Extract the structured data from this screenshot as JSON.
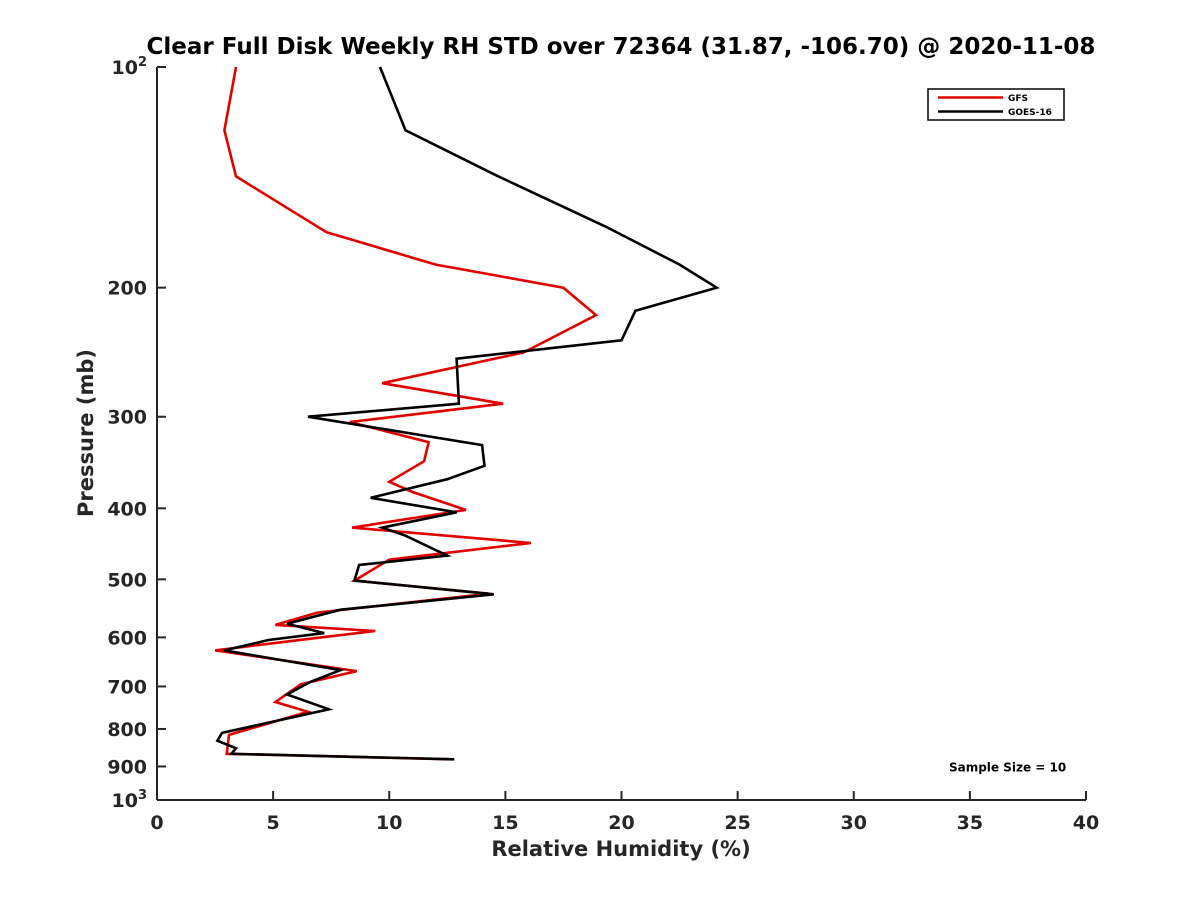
{
  "chart_data": {
    "type": "line",
    "title": "Clear Full Disk Weekly RH STD over 72364 (31.87, -106.70) @ 2020-11-08",
    "xlabel": "Relative Humidity (%)",
    "ylabel": "Pressure (mb)",
    "xlim": [
      0,
      40
    ],
    "ylim": [
      100,
      1000
    ],
    "yscale": "log",
    "y_reversed": true,
    "grid": false,
    "legend_position": "top-right",
    "x_ticks": [
      "0",
      "5",
      "10",
      "15",
      "20",
      "25",
      "30",
      "35",
      "40"
    ],
    "x_tick_values": [
      0,
      5,
      10,
      15,
      20,
      25,
      30,
      35,
      40
    ],
    "y_ticks": [
      {
        "value": 100,
        "base": "10",
        "exp": "2"
      },
      {
        "value": 200,
        "label": "200"
      },
      {
        "value": 300,
        "label": "300"
      },
      {
        "value": 400,
        "label": "400"
      },
      {
        "value": 500,
        "label": "500"
      },
      {
        "value": 600,
        "label": "600"
      },
      {
        "value": 700,
        "label": "700"
      },
      {
        "value": 800,
        "label": "800"
      },
      {
        "value": 900,
        "label": "900"
      },
      {
        "value": 1000,
        "base": "10",
        "exp": "3"
      }
    ],
    "series": [
      {
        "name": "GFS",
        "color": "#e00000",
        "points": [
          [
            3.4,
            100
          ],
          [
            2.9,
            122
          ],
          [
            3.4,
            141
          ],
          [
            7.3,
            168
          ],
          [
            12.0,
            186
          ],
          [
            17.5,
            200
          ],
          [
            18.9,
            218
          ],
          [
            15.8,
            245
          ],
          [
            9.7,
            270
          ],
          [
            14.9,
            288
          ],
          [
            8.3,
            305
          ],
          [
            11.7,
            325
          ],
          [
            11.5,
            345
          ],
          [
            10.0,
            368
          ],
          [
            11.0,
            380
          ],
          [
            13.3,
            402
          ],
          [
            8.4,
            425
          ],
          [
            16.1,
            446
          ],
          [
            10.0,
            470
          ],
          [
            8.5,
            502
          ],
          [
            14.3,
            523
          ],
          [
            6.9,
            555
          ],
          [
            5.1,
            577
          ],
          [
            9.4,
            588
          ],
          [
            6.7,
            602
          ],
          [
            2.5,
            625
          ],
          [
            8.6,
            667
          ],
          [
            6.2,
            695
          ],
          [
            5.1,
            735
          ],
          [
            6.5,
            758
          ],
          [
            3.1,
            815
          ],
          [
            3.0,
            865
          ],
          [
            12.7,
            880
          ]
        ]
      },
      {
        "name": "GOES-16",
        "color": "#000000",
        "points": [
          [
            9.6,
            100
          ],
          [
            10.7,
            122
          ],
          [
            14.7,
            141
          ],
          [
            19.3,
            165
          ],
          [
            22.5,
            186
          ],
          [
            24.1,
            200
          ],
          [
            20.6,
            215
          ],
          [
            20.0,
            236
          ],
          [
            12.9,
            250
          ],
          [
            13.0,
            288
          ],
          [
            6.5,
            300
          ],
          [
            14.0,
            328
          ],
          [
            14.1,
            350
          ],
          [
            12.5,
            365
          ],
          [
            9.2,
            387
          ],
          [
            12.9,
            405
          ],
          [
            9.7,
            425
          ],
          [
            10.7,
            436
          ],
          [
            12.5,
            464
          ],
          [
            8.7,
            478
          ],
          [
            8.5,
            502
          ],
          [
            14.5,
            524
          ],
          [
            7.9,
            550
          ],
          [
            5.6,
            575
          ],
          [
            7.2,
            592
          ],
          [
            4.8,
            605
          ],
          [
            2.9,
            625
          ],
          [
            7.9,
            665
          ],
          [
            6.6,
            690
          ],
          [
            5.6,
            718
          ],
          [
            7.4,
            752
          ],
          [
            2.8,
            810
          ],
          [
            2.6,
            830
          ],
          [
            3.4,
            850
          ],
          [
            3.2,
            865
          ],
          [
            12.8,
            880
          ]
        ]
      }
    ],
    "annotations": [
      {
        "text": "Sample Size = 10",
        "x": 34.1,
        "y": 900
      }
    ]
  }
}
